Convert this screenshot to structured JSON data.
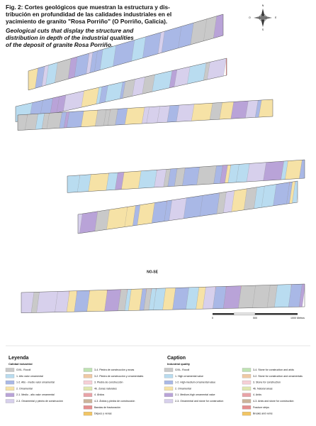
{
  "caption": {
    "es_lines": [
      "Fig. 2: Cortes geológicos que muestran la estructura y dis-",
      "tribución en profundidad de las calidades industriales en el",
      "yacimiento de granito \"Rosa Porriño\" (O Porriño, Galicia)."
    ],
    "en_lines": [
      "Geological cuts that display the structure and",
      "distribution in depth of the industrial qualities",
      "of the deposit of granite Rosa Porriño."
    ]
  },
  "compass": {
    "n": "N",
    "s": "S",
    "e": "E",
    "w": "O"
  },
  "section_label": "NO-SE",
  "scale": {
    "labels": [
      "0",
      "500",
      "1000 Metros"
    ]
  },
  "legend_es": {
    "title": "Leyenda",
    "subtitle": "Calidad industrial",
    "items": [
      "G/XL. Rocoll",
      "1. Alto valor ornamental",
      "1-2. Alto - medio valor ornamental",
      "2. Ornamental",
      "2-1. Medio - alto valor ornamental",
      "2-3. Ornamental y piedra de construcción",
      "3-4. Piedra de construcción y arcas",
      "3-2. Piedra de construcción y ornamentales",
      "3. Piedra de construcción",
      "4b. Zonas naturales",
      "4. Áridos",
      "4-3. Áridos y piedra de construcción",
      "Bandas de fracturación",
      "Diques y venas"
    ]
  },
  "legend_en": {
    "title": "Caption",
    "subtitle": "Industrial quality",
    "items": [
      "G/XL. Rocoll",
      "1. High ornamental value",
      "1-2. High-medium ornamental value",
      "2. Ornamental",
      "2-1. Medium-high ornamental value",
      "2-3. Ornamental and stone for construction",
      "3-4. Stone for construction and arids",
      "3-2. Stone for construction and ornamentals",
      "3. Stone for construction",
      "4b. Natural areas",
      "4. Arids",
      "4-3. Arids and stone for construction",
      "Fracture strips",
      "Breaks and veins"
    ]
  }
}
